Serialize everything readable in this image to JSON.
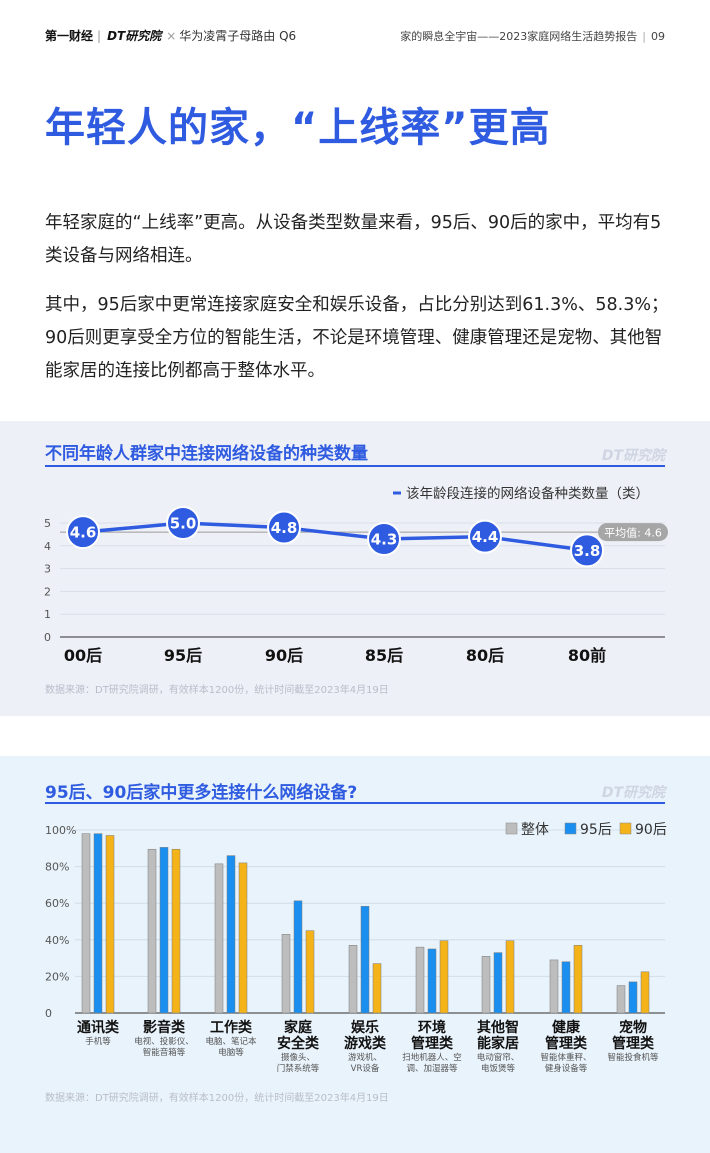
{
  "header": {
    "brand_cbn": "第一财经",
    "brand_dt": "DT研究院",
    "cross": "×",
    "partner": "华为凌霄子母路由 Q6",
    "report_title": "家的瞬息全宇宙——2023家庭网络生活趋势报告",
    "page_number": "09"
  },
  "page_title": "年轻人的家，“上线率”更高",
  "paragraphs": [
    "年轻家庭的“上线率”更高。从设备类型数量来看，95后、90后的家中，平均有5类设备与网络相连。",
    "其中，95后家中更常连接家庭安全和娱乐设备，占比分别达到61.3%、58.3%；90后则更享受全方位的智能生活，不论是环境管理、健康管理还是宠物、其他智能家居的连接比例都高于整体水平。"
  ],
  "watermark": "DT研究院",
  "chart_data": [
    {
      "type": "line",
      "title": "不同年龄人群家中连接网络设备的种类数量",
      "categories": [
        "00后",
        "95后",
        "90后",
        "85后",
        "80后",
        "80前"
      ],
      "series": [
        {
          "name": "该年龄段连接的网络设备种类数量（类）",
          "values": [
            4.6,
            5.0,
            4.8,
            4.3,
            4.4,
            3.8
          ],
          "labels": [
            "4.6",
            "5.0",
            "4.8",
            "4.3",
            "4.4",
            "3.8"
          ]
        }
      ],
      "reference_line": {
        "label": "平均值: 4.6",
        "value": 4.6
      },
      "ylim": [
        0,
        5
      ],
      "yticks": [
        "0",
        "1",
        "2",
        "3",
        "4",
        "5"
      ],
      "source": "数据来源：DT研究院调研，有效样本1200份，统计时间截至2023年4月19日",
      "colors": {
        "line": "#2f5be0",
        "reference": "#9a9a9a"
      }
    },
    {
      "type": "bar",
      "title": "95后、90后家中更多连接什么网络设备?",
      "categories": [
        "通讯类",
        "影音类",
        "工作类",
        "家庭安全类",
        "娱乐游戏类",
        "环境管理类",
        "其他智能家居",
        "健康管理类",
        "宠物管理类"
      ],
      "category_lines": [
        [
          "通讯类"
        ],
        [
          "影音类"
        ],
        [
          "工作类"
        ],
        [
          "家庭",
          "安全类"
        ],
        [
          "娱乐",
          "游戏类"
        ],
        [
          "环境",
          "管理类"
        ],
        [
          "其他智",
          "能家居"
        ],
        [
          "健康",
          "管理类"
        ],
        [
          "宠物",
          "管理类"
        ]
      ],
      "subtitles": [
        [
          "手机等"
        ],
        [
          "电视、投影仪、",
          "智能音箱等"
        ],
        [
          "电脑、笔记本",
          "电脑等"
        ],
        [
          "摄像头、",
          "门禁系统等"
        ],
        [
          "游戏机、",
          "VR设备"
        ],
        [
          "扫地机器人、空",
          "调、加湿器等"
        ],
        [
          "电动窗帘、",
          "电饭煲等"
        ],
        [
          "智能体重秤、",
          "健身设备等"
        ],
        [
          "智能投食机等"
        ]
      ],
      "series": [
        {
          "name": "整体",
          "values": [
            98,
            89.5,
            81.5,
            43,
            37,
            36,
            31,
            29,
            15
          ]
        },
        {
          "name": "95后",
          "values": [
            98,
            90.5,
            86,
            61.3,
            58.3,
            35,
            33,
            28,
            17
          ]
        },
        {
          "name": "90后",
          "values": [
            97,
            89.5,
            82,
            45,
            27,
            39.5,
            39.5,
            37,
            22.5
          ]
        }
      ],
      "yticks": [
        "0",
        "20%",
        "40%",
        "60%",
        "80%",
        "100%"
      ],
      "ylim": [
        0,
        100
      ],
      "source": "数据来源：DT研究院调研，有效样本1200份，统计时间截至2023年4月19日",
      "colors": {
        "整体": "#bdbdbd",
        "95后": "#1a8ff0",
        "90后": "#f5b31a"
      }
    }
  ]
}
